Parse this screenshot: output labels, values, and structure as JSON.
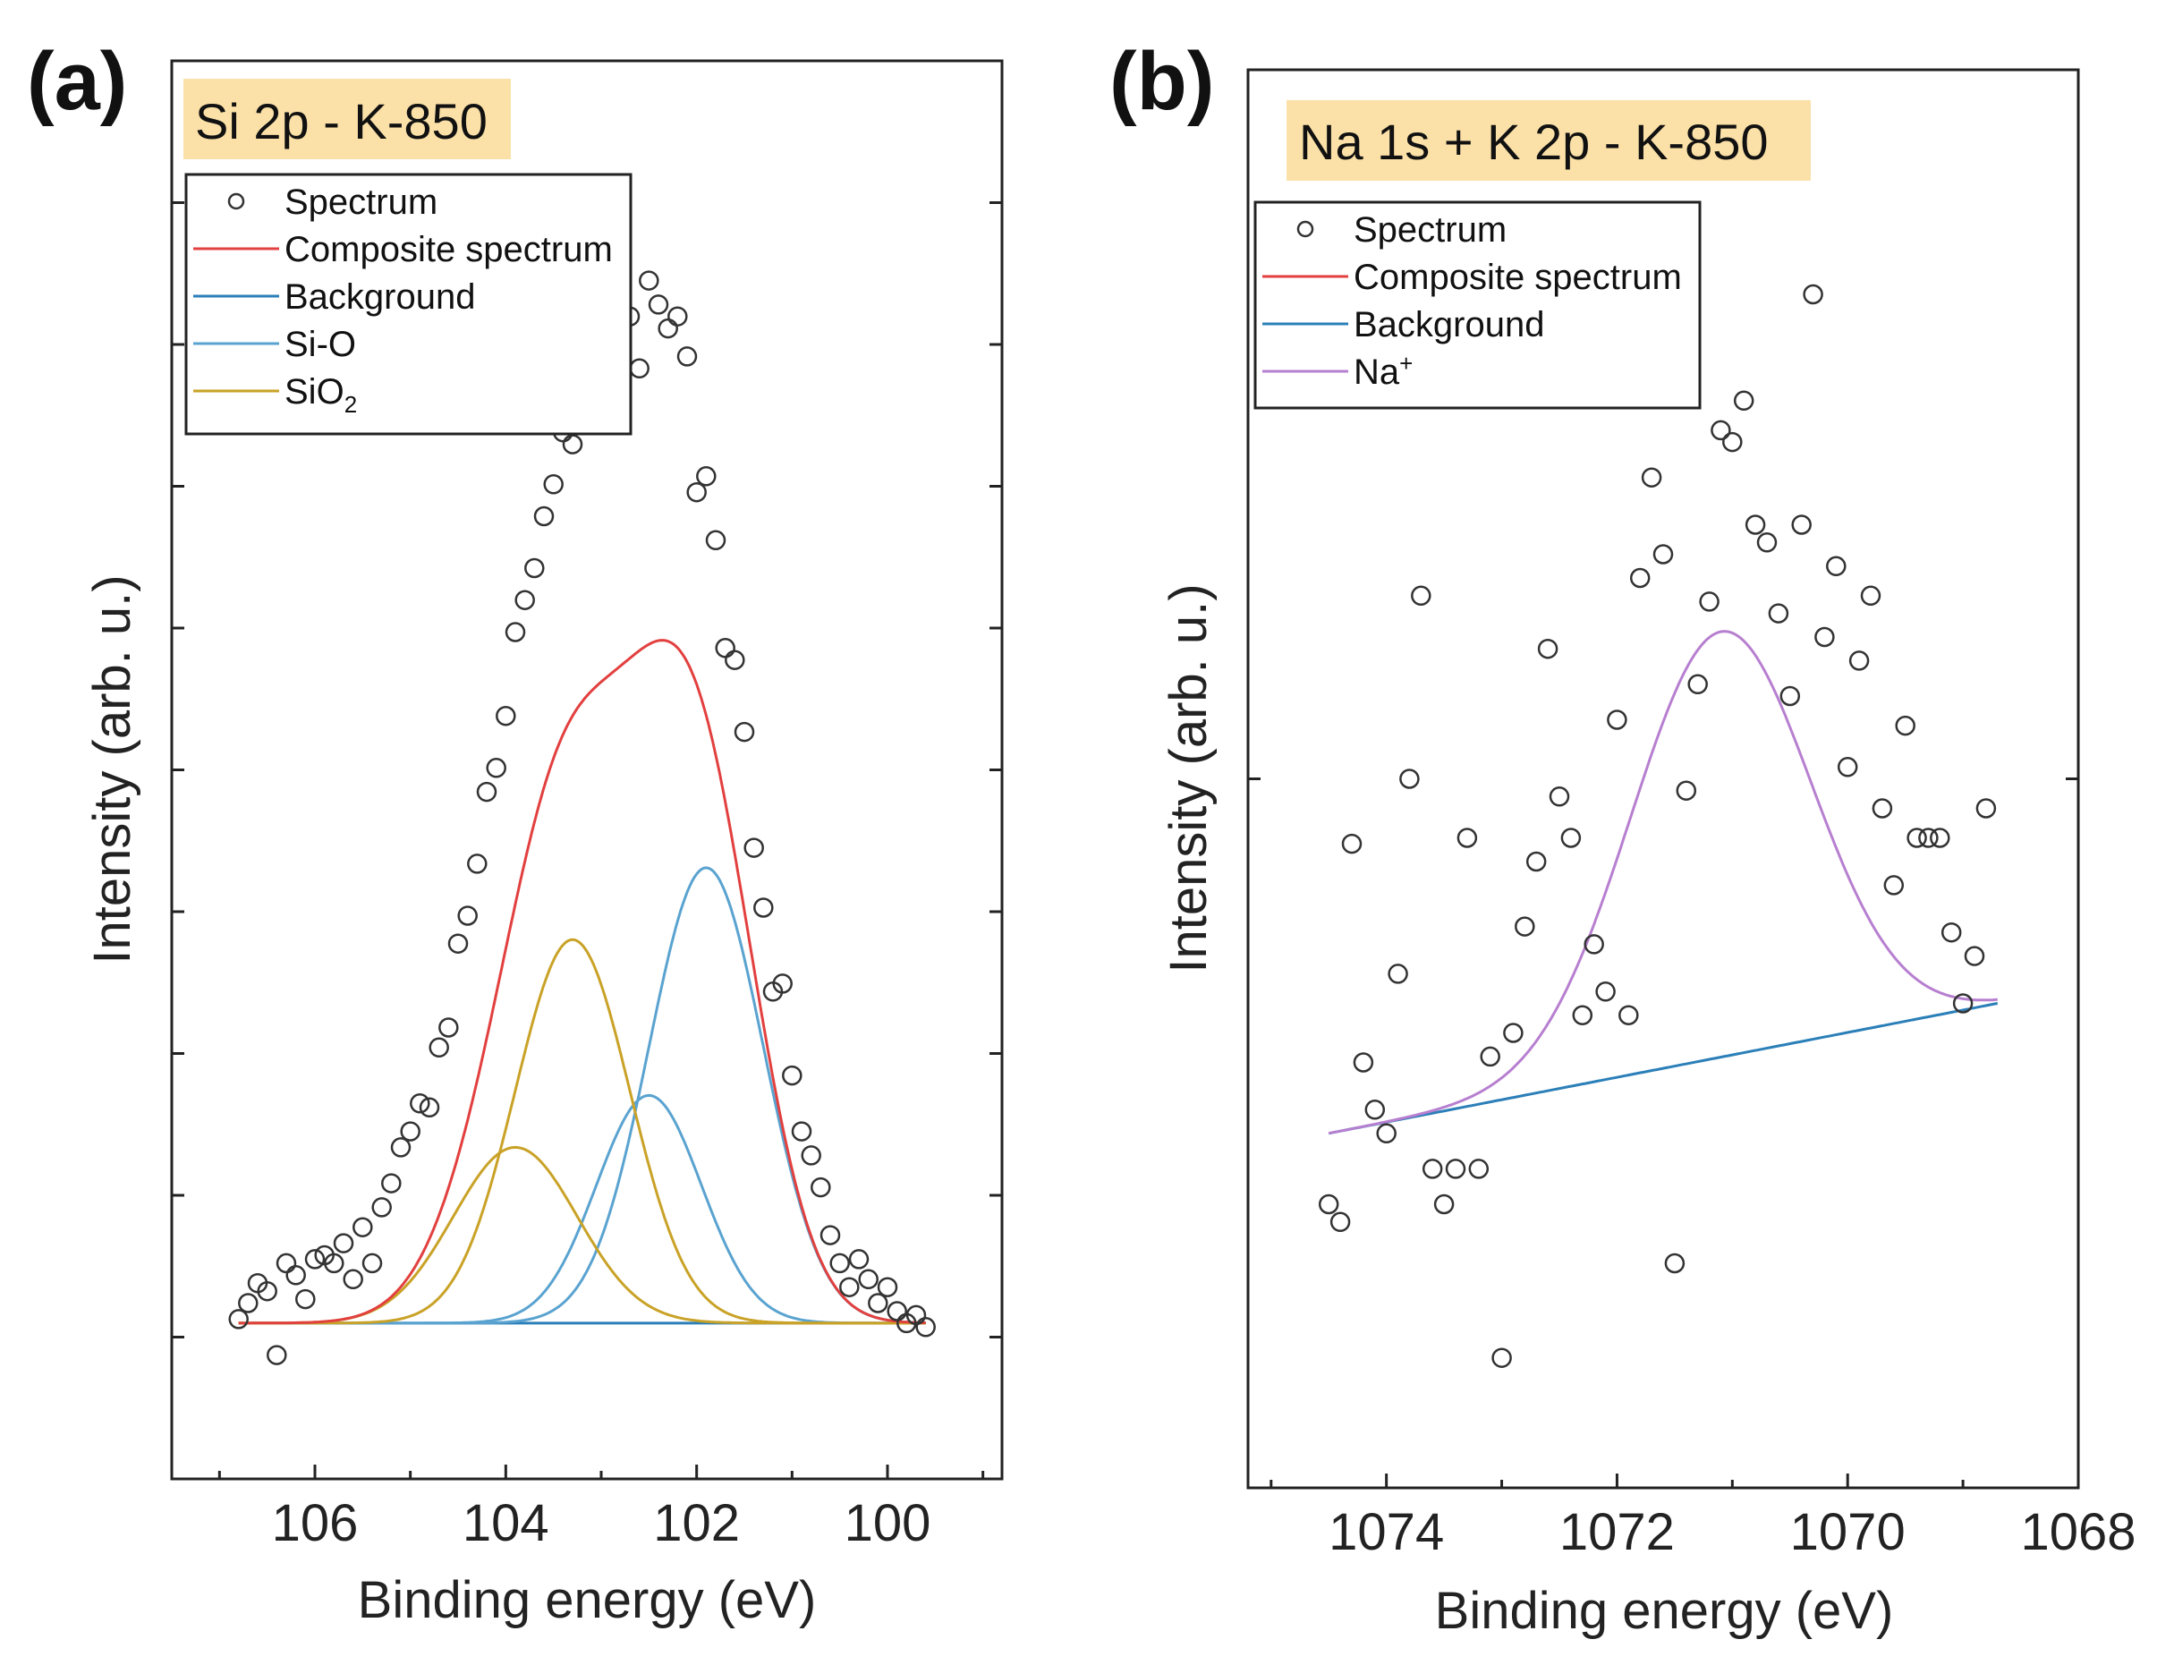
{
  "colors": {
    "spectrum": "#333333",
    "composite": "#e2403f",
    "background": "#2b7fb8",
    "si_o": "#5aa3d0",
    "sio2": "#c9a227",
    "na_plus": "#b77fd0",
    "title_bg": "#fbe1a8"
  },
  "chart_data": [
    {
      "panel": "(a)",
      "type": "scatter",
      "title": "Si 2p - K-850",
      "xlabel": "Binding energy (eV)",
      "ylabel": "Intensity (arb. u.)",
      "xlim": [
        107.5,
        98.8
      ],
      "ylim": [
        -0.35,
        3.2
      ],
      "x_ticks": [
        "106",
        "104",
        "102",
        "100"
      ],
      "legend": [
        {
          "label": "Spectrum",
          "key": "spectrum",
          "marker": "circle"
        },
        {
          "label": "Composite spectrum",
          "key": "composite",
          "marker": "line"
        },
        {
          "label": "Background",
          "key": "background",
          "marker": "line"
        },
        {
          "label": "Si-O",
          "key": "si_o",
          "marker": "line"
        },
        {
          "label": "SiO",
          "sub": "2",
          "key": "sio2",
          "marker": "line"
        }
      ],
      "background_line": {
        "x": [
          106.8,
          99.6
        ],
        "y": [
          0.04,
          0.04
        ]
      },
      "components": [
        {
          "name": "Si-O",
          "color_key": "si_o",
          "peaks": [
            {
              "center": 101.9,
              "amp": 1.14,
              "sigma": 0.6
            },
            {
              "center": 102.5,
              "amp": 0.57,
              "sigma": 0.55
            }
          ]
        },
        {
          "name": "SiO2",
          "color_key": "sio2",
          "peaks": [
            {
              "center": 103.3,
              "amp": 0.96,
              "sigma": 0.6
            },
            {
              "center": 103.9,
              "amp": 0.44,
              "sigma": 0.65
            }
          ]
        }
      ],
      "spectrum": {
        "x": [
          106.8,
          106.7,
          106.6,
          106.5,
          106.4,
          106.3,
          106.2,
          106.1,
          106.0,
          105.9,
          105.8,
          105.7,
          105.6,
          105.5,
          105.4,
          105.3,
          105.2,
          105.1,
          105.0,
          104.9,
          104.8,
          104.7,
          104.6,
          104.5,
          104.4,
          104.3,
          104.2,
          104.1,
          104.0,
          103.9,
          103.8,
          103.7,
          103.6,
          103.5,
          103.4,
          103.3,
          103.2,
          103.1,
          103.0,
          102.9,
          102.8,
          102.7,
          102.6,
          102.5,
          102.4,
          102.3,
          102.2,
          102.1,
          102.0,
          101.9,
          101.8,
          101.7,
          101.6,
          101.5,
          101.4,
          101.3,
          101.2,
          101.1,
          101.0,
          100.9,
          100.8,
          100.7,
          100.6,
          100.5,
          100.4,
          100.3,
          100.2,
          100.1,
          100.0,
          99.9,
          99.8,
          99.7,
          99.6
        ],
        "y": [
          0.05,
          0.09,
          0.14,
          0.12,
          -0.04,
          0.19,
          0.16,
          0.1,
          0.2,
          0.21,
          0.19,
          0.24,
          0.15,
          0.28,
          0.19,
          0.33,
          0.39,
          0.48,
          0.52,
          0.59,
          0.58,
          0.73,
          0.78,
          0.99,
          1.06,
          1.19,
          1.37,
          1.43,
          1.56,
          1.77,
          1.85,
          1.93,
          2.06,
          2.14,
          2.27,
          2.24,
          2.31,
          2.43,
          2.58,
          2.39,
          2.5,
          2.56,
          2.43,
          2.65,
          2.59,
          2.53,
          2.56,
          2.46,
          2.12,
          2.16,
          2.0,
          1.73,
          1.7,
          1.52,
          1.23,
          1.08,
          0.87,
          0.89,
          0.66,
          0.52,
          0.46,
          0.38,
          0.26,
          0.19,
          0.13,
          0.2,
          0.15,
          0.09,
          0.13,
          0.07,
          0.04,
          0.06,
          0.03
        ]
      }
    },
    {
      "panel": "(b)",
      "type": "scatter",
      "title": "Na 1s + K 2p - K-850",
      "xlabel": "Binding energy (eV)",
      "ylabel": "Intensity (arb. u.)",
      "xlim": [
        1075.2,
        1068.0
      ],
      "ylim": [
        -0.6,
        1.8
      ],
      "x_ticks": [
        "1074",
        "1072",
        "1070",
        "1068"
      ],
      "legend": [
        {
          "label": "Spectrum",
          "key": "spectrum",
          "marker": "circle"
        },
        {
          "label": "Composite spectrum",
          "key": "composite",
          "marker": "line"
        },
        {
          "label": "Background",
          "key": "background",
          "marker": "line"
        },
        {
          "label": "Na",
          "sup": "+",
          "key": "na_plus",
          "marker": "line"
        }
      ],
      "background_line": {
        "x": [
          1074.5,
          1068.7
        ],
        "y": [
          0.0,
          0.22
        ]
      },
      "components": [
        {
          "name": "Na+",
          "color_key": "na_plus",
          "peaks": [
            {
              "center": 1071.1,
              "amp": 0.72,
              "sigma": 0.78
            }
          ]
        }
      ],
      "spectrum": {
        "x": [
          1074.5,
          1074.4,
          1074.3,
          1074.2,
          1074.1,
          1074.0,
          1073.9,
          1073.8,
          1073.7,
          1073.6,
          1073.5,
          1073.4,
          1073.3,
          1073.2,
          1073.1,
          1073.0,
          1072.9,
          1072.8,
          1072.7,
          1072.6,
          1072.5,
          1072.4,
          1072.3,
          1072.2,
          1072.1,
          1072.0,
          1071.9,
          1071.8,
          1071.7,
          1071.6,
          1071.5,
          1071.4,
          1071.3,
          1071.2,
          1071.1,
          1071.0,
          1070.9,
          1070.8,
          1070.7,
          1070.6,
          1070.5,
          1070.4,
          1070.3,
          1070.2,
          1070.1,
          1070.0,
          1069.9,
          1069.8,
          1069.7,
          1069.6,
          1069.5,
          1069.4,
          1069.3,
          1069.2,
          1069.1,
          1069.0,
          1068.9,
          1068.8
        ],
        "y": [
          -0.12,
          -0.15,
          0.49,
          0.12,
          0.04,
          0.0,
          0.27,
          0.6,
          0.91,
          -0.06,
          -0.12,
          -0.06,
          0.5,
          -0.06,
          0.13,
          -0.38,
          0.17,
          0.35,
          0.46,
          0.82,
          0.57,
          0.5,
          0.2,
          0.32,
          0.24,
          0.7,
          0.2,
          0.94,
          1.11,
          0.98,
          -0.22,
          0.58,
          0.76,
          0.9,
          1.19,
          1.17,
          1.24,
          1.03,
          1.0,
          0.88,
          0.74,
          1.03,
          1.42,
          0.84,
          0.96,
          0.62,
          0.8,
          0.91,
          0.55,
          0.42,
          0.69,
          0.5,
          0.5,
          0.5,
          0.34,
          0.22,
          0.3,
          0.55
        ]
      }
    }
  ]
}
